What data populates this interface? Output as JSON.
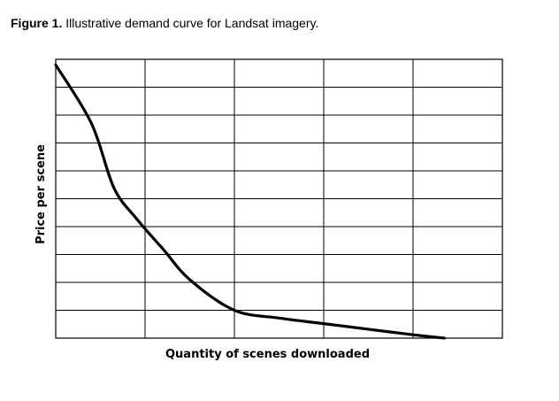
{
  "caption": {
    "label": "Figure 1.",
    "text": "Illustrative demand curve for Landsat imagery."
  },
  "chart_data": {
    "type": "line",
    "title": "",
    "xlabel": "Quantity of scenes downloaded",
    "ylabel": "Price per scene",
    "xlim": [
      0,
      5
    ],
    "ylim": [
      0,
      10
    ],
    "grid": true,
    "x_gridlines": 5,
    "y_gridlines": 10,
    "series": [
      {
        "name": "",
        "color": "#000000",
        "x": [
          0,
          0.4,
          0.65,
          0.9,
          1.2,
          1.5,
          2.0,
          2.5,
          3.0,
          3.5,
          4.0,
          4.35
        ],
        "y": [
          9.8,
          7.7,
          5.4,
          4.3,
          3.2,
          2.1,
          1.0,
          0.72,
          0.52,
          0.32,
          0.12,
          0.0
        ]
      }
    ]
  }
}
